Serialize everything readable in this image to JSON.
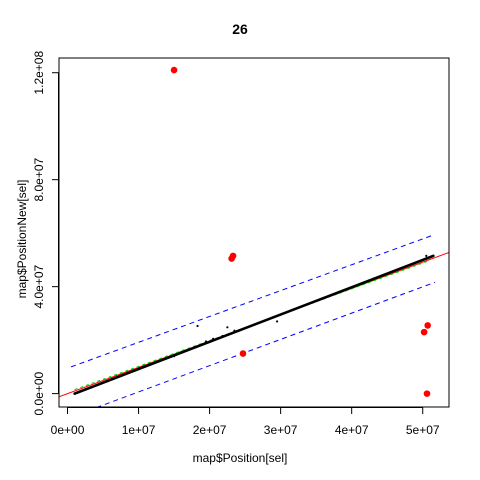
{
  "chart_data": {
    "type": "scatter",
    "title": "26",
    "xlabel": "map$Position[sel]",
    "ylabel": "map$PositionNew[sel]",
    "xlim": [
      -1200000,
      53700000
    ],
    "ylim": [
      -5000000,
      125500000
    ],
    "x_ticks": [
      0,
      10000000,
      20000000,
      30000000,
      40000000,
      50000000
    ],
    "x_tick_labels": [
      "0e+00",
      "1e+07",
      "2e+07",
      "3e+07",
      "4e+07",
      "5e+07"
    ],
    "y_ticks": [
      0,
      40000000,
      80000000,
      120000000
    ],
    "y_tick_labels": [
      "0.0e+00",
      "4.0e+07",
      "8.0e+07",
      "1.2e+08"
    ],
    "grid": false,
    "legend": "none",
    "colors": {
      "points": "#000000",
      "outliers": "#ff0000",
      "fit_line": "#ff0000",
      "bounds": "#0000ff",
      "smooth": "#00cd00"
    },
    "series": [
      {
        "type": "line",
        "x": [
          1000000,
          51500000
        ],
        "y": [
          0,
          51500000
        ]
      },
      {
        "type": "scatter",
        "x": [
          15000000,
          16000000,
          18300000,
          19500000,
          20500000,
          21800000,
          22500000,
          23500000,
          29500000,
          50500000,
          51000000
        ],
        "y": [
          14000000,
          15500000,
          25300000,
          19500000,
          20500000,
          21500000,
          24800000,
          23500000,
          27000000,
          51500000,
          51000000
        ]
      },
      {
        "type": "scatter",
        "x": [
          15000000,
          23300000,
          23100000,
          24700000,
          50200000,
          50700000,
          50600000
        ],
        "y": [
          121000000,
          51500000,
          50500000,
          15000000,
          23000000,
          25500000,
          0
        ]
      }
    ],
    "reference_lines": [
      {
        "style": "solid",
        "x": [
          -1200000,
          53700000
        ],
        "y": [
          -1200000,
          52800000
        ]
      },
      {
        "style": "dashed",
        "x": [
          500000,
          51700000
        ],
        "y": [
          10000000,
          59500000
        ]
      },
      {
        "style": "dashed",
        "x": [
          500000,
          51700000
        ],
        "y": [
          -8700000,
          41600000
        ]
      },
      {
        "style": "dashed",
        "x": [
          1000000,
          51000000
        ],
        "y": [
          1500000,
          49800000
        ]
      }
    ]
  }
}
